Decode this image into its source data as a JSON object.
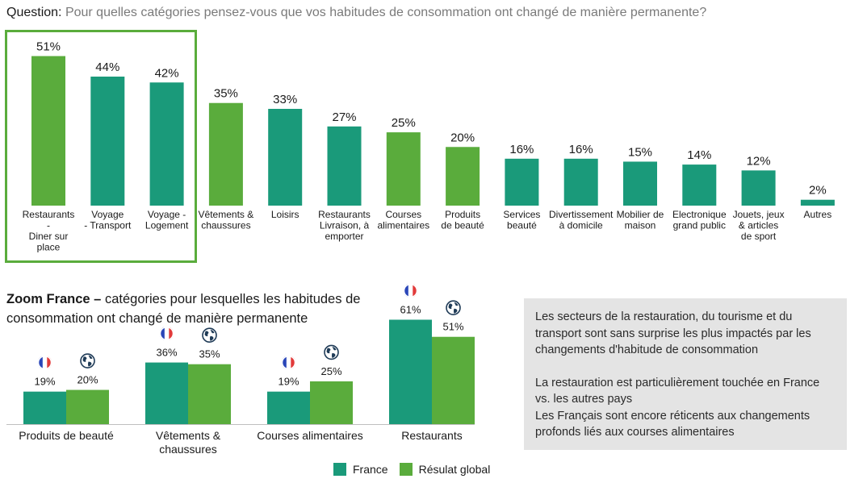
{
  "question": {
    "label": "Question:",
    "text": "Pour quelles catégories pensez-vous que vos habitudes de consommation ont changé de manière permanente?"
  },
  "colors": {
    "france": "#1a9a7a",
    "global": "#5aac3c",
    "highlight": "#5aac3c",
    "note_bg": "#e4e4e4"
  },
  "chart_data": [
    {
      "type": "bar",
      "categories": [
        [
          "Restaurants",
          "-",
          "Diner sur",
          "place"
        ],
        [
          "Voyage",
          "- Transport"
        ],
        [
          "Voyage -",
          "Logement"
        ],
        [
          "Vêtements &",
          "chaussures"
        ],
        [
          "Loisirs"
        ],
        [
          "Restaurants",
          "Livraison, à",
          "emporter"
        ],
        [
          "Courses",
          "alimentaires"
        ],
        [
          "Produits",
          "de beauté"
        ],
        [
          "Services",
          "beauté"
        ],
        [
          "Divertissement",
          "à domicile"
        ],
        [
          "Mobilier de",
          "maison"
        ],
        [
          "Electronique",
          "grand public"
        ],
        [
          "Jouets, jeux",
          "& articles",
          "de sport"
        ],
        [
          "Autres"
        ]
      ],
      "values": [
        51,
        44,
        42,
        35,
        33,
        27,
        25,
        20,
        16,
        16,
        15,
        14,
        12,
        2
      ],
      "value_labels": [
        "51%",
        "44%",
        "42%",
        "35%",
        "33%",
        "27%",
        "25%",
        "20%",
        "16%",
        "16%",
        "15%",
        "14%",
        "12%",
        "2%"
      ],
      "bar_colors": [
        "global",
        "france",
        "france",
        "global",
        "france",
        "france",
        "global",
        "global",
        "france",
        "france",
        "france",
        "france",
        "france",
        "france"
      ],
      "highlighted_categories": 3,
      "ylim": [
        0,
        55
      ],
      "grid": false
    },
    {
      "type": "bar",
      "title_bold": "Zoom France –",
      "title_rest": " catégories pour lesquelles les habitudes de consommation ont changé de manière permanente",
      "categories": [
        [
          "Produits de beauté"
        ],
        [
          "Vêtements &",
          "chaussures"
        ],
        [
          "Courses alimentaires"
        ],
        [
          "Restaurants"
        ]
      ],
      "series": [
        {
          "name": "France",
          "color": "france",
          "icon": "france-flag-icon",
          "values": [
            19,
            36,
            19,
            61
          ],
          "labels": [
            "19%",
            "36%",
            "19%",
            "61%"
          ]
        },
        {
          "name": "Résulat global",
          "color": "global",
          "icon": "globe-icon",
          "values": [
            20,
            35,
            25,
            51
          ],
          "labels": [
            "20%",
            "35%",
            "25%",
            "51%"
          ]
        }
      ],
      "ylim": [
        0,
        65
      ],
      "legend": "bottom",
      "grid": false
    }
  ],
  "note": {
    "paragraph1": "Les secteurs de la restauration, du tourisme et du transport sont sans surprise les plus impactés par les changements d'habitude de consommation",
    "paragraph2": "La restauration est particulièrement touchée en France vs. les autres pays",
    "paragraph3": "Les Français sont encore réticents aux changements profonds liés aux courses alimentaires"
  }
}
